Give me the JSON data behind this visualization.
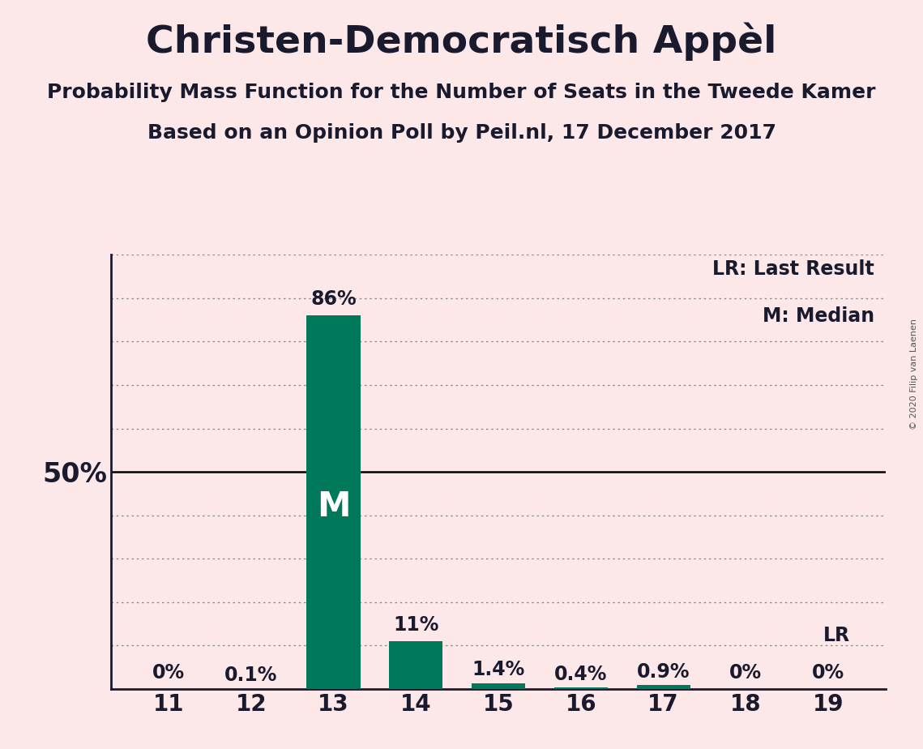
{
  "title": "Christen-Democratisch Appèl",
  "subtitle1": "Probability Mass Function for the Number of Seats in the Tweede Kamer",
  "subtitle2": "Based on an Opinion Poll by Peil.nl, 17 December 2017",
  "copyright": "© 2020 Filip van Laenen",
  "categories": [
    11,
    12,
    13,
    14,
    15,
    16,
    17,
    18,
    19
  ],
  "values": [
    0.0,
    0.1,
    86.0,
    11.0,
    1.4,
    0.4,
    0.9,
    0.0,
    0.0
  ],
  "bar_labels": [
    "0%",
    "0.1%",
    "86%",
    "11%",
    "1.4%",
    "0.4%",
    "0.9%",
    "0%",
    "0%"
  ],
  "bar_color_main": "#00785a",
  "median_bar_index": 2,
  "last_result_index": 8,
  "background_color": "#fce8e8",
  "grid_color": "#888888",
  "ylim": [
    0,
    100
  ],
  "legend_lr": "LR: Last Result",
  "legend_m": "M: Median",
  "title_fontsize": 34,
  "subtitle_fontsize": 18,
  "label_fontsize": 17,
  "tick_fontsize": 20,
  "fifty_fontsize": 24,
  "m_fontsize": 30
}
